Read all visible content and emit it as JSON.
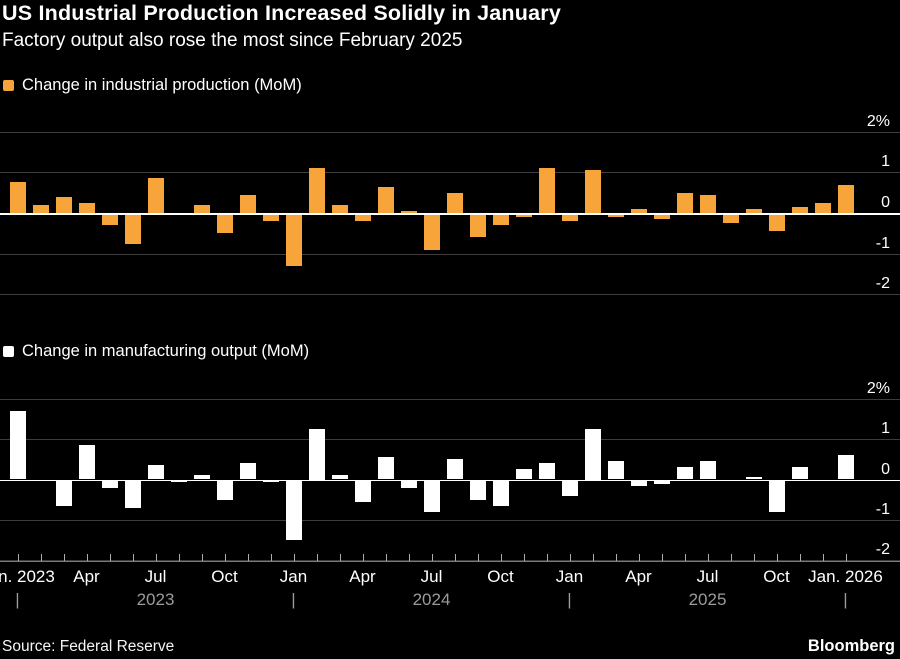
{
  "header": {
    "title": "US Industrial Production Increased Solidly in January",
    "subtitle": "Factory output also rose the most since February 2025"
  },
  "colors": {
    "background": "#000000",
    "orange": "#F7A43B",
    "white": "#FFFFFF",
    "gridline": "#3D3D3D",
    "zero_line": "#FFFFFF",
    "axis_line": "#7C7C7C",
    "axis_tick": "#ABABAB",
    "muted_text": "#9B9B9B"
  },
  "chart_data": [
    {
      "type": "bar",
      "title": "Change in industrial production (MoM)",
      "unit": "%",
      "color": "#F7A43B",
      "ylim": [
        -2,
        2
      ],
      "grid": true,
      "y_ticks": [
        {
          "value": 2,
          "label": "2%"
        },
        {
          "value": 1,
          "label": "1"
        },
        {
          "value": 0,
          "label": "0"
        },
        {
          "value": -1,
          "label": "-1"
        },
        {
          "value": -2,
          "label": "-2"
        }
      ],
      "categories": [
        "Jan 2023",
        "Feb 2023",
        "Mar 2023",
        "Apr 2023",
        "May 2023",
        "Jun 2023",
        "Jul 2023",
        "Aug 2023",
        "Sep 2023",
        "Oct 2023",
        "Nov 2023",
        "Dec 2023",
        "Jan 2024",
        "Feb 2024",
        "Mar 2024",
        "Apr 2024",
        "May 2024",
        "Jun 2024",
        "Jul 2024",
        "Aug 2024",
        "Sep 2024",
        "Oct 2024",
        "Nov 2024",
        "Dec 2024",
        "Jan 2025",
        "Feb 2025",
        "Mar 2025",
        "Apr 2025",
        "May 2025",
        "Jun 2025",
        "Jul 2025",
        "Aug 2025",
        "Sep 2025",
        "Oct 2025",
        "Nov 2025",
        "Dec 2025",
        "Jan 2026"
      ],
      "values": [
        0.75,
        0.2,
        0.4,
        0.25,
        -0.3,
        -0.75,
        0.85,
        -0.05,
        0.2,
        -0.5,
        0.45,
        -0.2,
        -1.3,
        1.1,
        0.2,
        -0.2,
        0.65,
        0.05,
        -0.9,
        0.5,
        -0.6,
        -0.3,
        -0.1,
        1.1,
        -0.2,
        1.05,
        -0.1,
        0.1,
        -0.15,
        0.5,
        0.45,
        -0.25,
        0.1,
        -0.45,
        0.15,
        0.25,
        0.7
      ]
    },
    {
      "type": "bar",
      "title": "Change in manufacturing output (MoM)",
      "unit": "%",
      "color": "#FFFFFF",
      "ylim": [
        -2,
        2
      ],
      "grid": true,
      "y_ticks": [
        {
          "value": 2,
          "label": "2%"
        },
        {
          "value": 1,
          "label": "1"
        },
        {
          "value": 0,
          "label": "0"
        },
        {
          "value": -1,
          "label": "-1"
        },
        {
          "value": -2,
          "label": "-2"
        }
      ],
      "categories": [
        "Jan 2023",
        "Feb 2023",
        "Mar 2023",
        "Apr 2023",
        "May 2023",
        "Jun 2023",
        "Jul 2023",
        "Aug 2023",
        "Sep 2023",
        "Oct 2023",
        "Nov 2023",
        "Dec 2023",
        "Jan 2024",
        "Feb 2024",
        "Mar 2024",
        "Apr 2024",
        "May 2024",
        "Jun 2024",
        "Jul 2024",
        "Aug 2024",
        "Sep 2024",
        "Oct 2024",
        "Nov 2024",
        "Dec 2024",
        "Jan 2025",
        "Feb 2025",
        "Mar 2025",
        "Apr 2025",
        "May 2025",
        "Jun 2025",
        "Jul 2025",
        "Aug 2025",
        "Sep 2025",
        "Oct 2025",
        "Nov 2025",
        "Dec 2025",
        "Jan 2026"
      ],
      "values": [
        1.7,
        0,
        -0.65,
        0.85,
        -0.2,
        -0.7,
        0.35,
        -0.05,
        0.1,
        -0.5,
        0.4,
        -0.05,
        -1.5,
        1.25,
        0.1,
        -0.55,
        0.55,
        -0.2,
        -0.8,
        0.5,
        -0.5,
        -0.65,
        0.25,
        0.4,
        -0.4,
        1.25,
        0.45,
        -0.15,
        -0.1,
        0.3,
        0.45,
        0,
        0.05,
        -0.8,
        0.3,
        0,
        0.6
      ]
    }
  ],
  "xaxis": {
    "month_ticks": [
      {
        "index": 0,
        "label": "Jan. 2023"
      },
      {
        "index": 3,
        "label": "Apr"
      },
      {
        "index": 6,
        "label": "Jul"
      },
      {
        "index": 9,
        "label": "Oct"
      },
      {
        "index": 12,
        "label": "Jan"
      },
      {
        "index": 15,
        "label": "Apr"
      },
      {
        "index": 18,
        "label": "Jul"
      },
      {
        "index": 21,
        "label": "Oct"
      },
      {
        "index": 24,
        "label": "Jan"
      },
      {
        "index": 27,
        "label": "Apr"
      },
      {
        "index": 30,
        "label": "Jul"
      },
      {
        "index": 33,
        "label": "Oct"
      },
      {
        "index": 36,
        "label": "Jan. 2026"
      }
    ],
    "year_separators": [
      0,
      12,
      24,
      36
    ],
    "year_labels": [
      {
        "index": 6,
        "label": "2023"
      },
      {
        "index": 18,
        "label": "2024"
      },
      {
        "index": 30,
        "label": "2025"
      }
    ]
  },
  "footer": {
    "source": "Source: Federal Reserve",
    "brand": "Bloomberg"
  }
}
